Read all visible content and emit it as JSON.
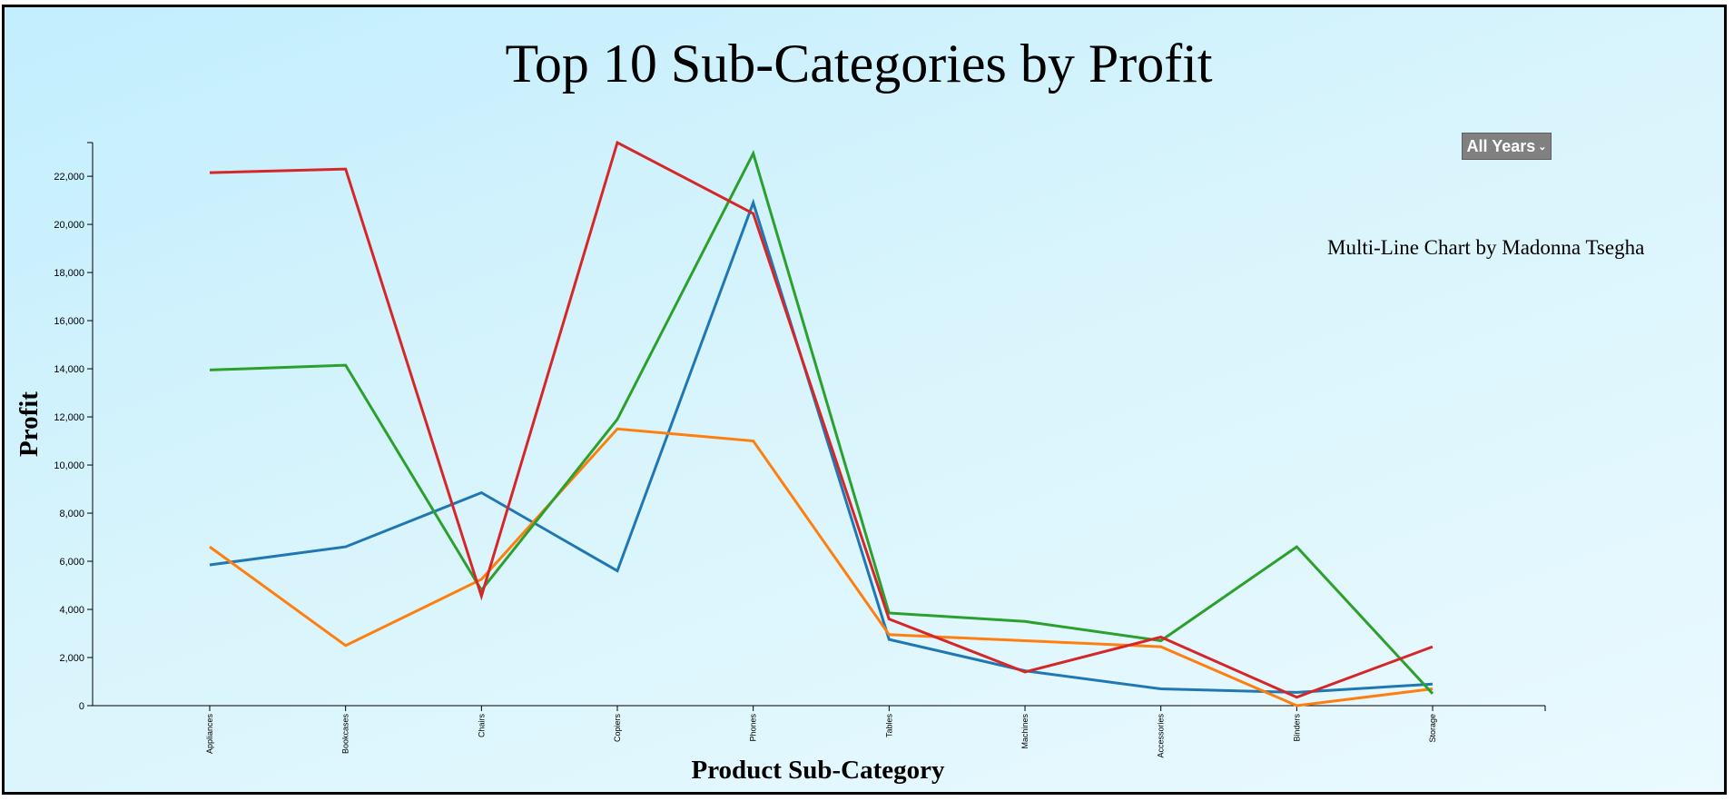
{
  "chart_data": {
    "type": "line",
    "title": "Top 10 Sub-Categories by Profit",
    "subtitle": "Multi-Line Chart by Madonna Tsegha",
    "xlabel": "Product Sub-Category",
    "ylabel": "Profit",
    "categories": [
      "Appliances",
      "Bookcases",
      "Chairs",
      "Copiers",
      "Phones",
      "Tables",
      "Machines",
      "Accessories",
      "Binders",
      "Storage"
    ],
    "ylim": [
      0,
      23400
    ],
    "yticks": [
      0,
      2000,
      4000,
      6000,
      8000,
      10000,
      12000,
      14000,
      16000,
      18000,
      20000,
      22000
    ],
    "ytick_labels": [
      "0",
      "2,000",
      "4,000",
      "6,000",
      "8,000",
      "10,000",
      "12,000",
      "14,000",
      "16,000",
      "18,000",
      "20,000",
      "22,000"
    ],
    "grid": false,
    "series": [
      {
        "color": "#1f77b4",
        "values": [
          5850,
          6600,
          8850,
          5600,
          20900,
          2750,
          1450,
          700,
          550,
          900
        ]
      },
      {
        "color": "#ff7f0e",
        "values": [
          6600,
          2500,
          5250,
          11500,
          11000,
          2950,
          2700,
          2450,
          0,
          700
        ]
      },
      {
        "color": "#2ca02c",
        "values": [
          13950,
          14150,
          4800,
          11900,
          22950,
          3850,
          3500,
          2700,
          6600,
          500
        ]
      },
      {
        "color": "#d62728",
        "values": [
          22150,
          22300,
          4550,
          23400,
          20450,
          3600,
          1400,
          2850,
          350,
          2450
        ]
      }
    ]
  },
  "controls": {
    "year_filter": {
      "selected": "All Years",
      "icon": "chevron-down-icon"
    }
  }
}
